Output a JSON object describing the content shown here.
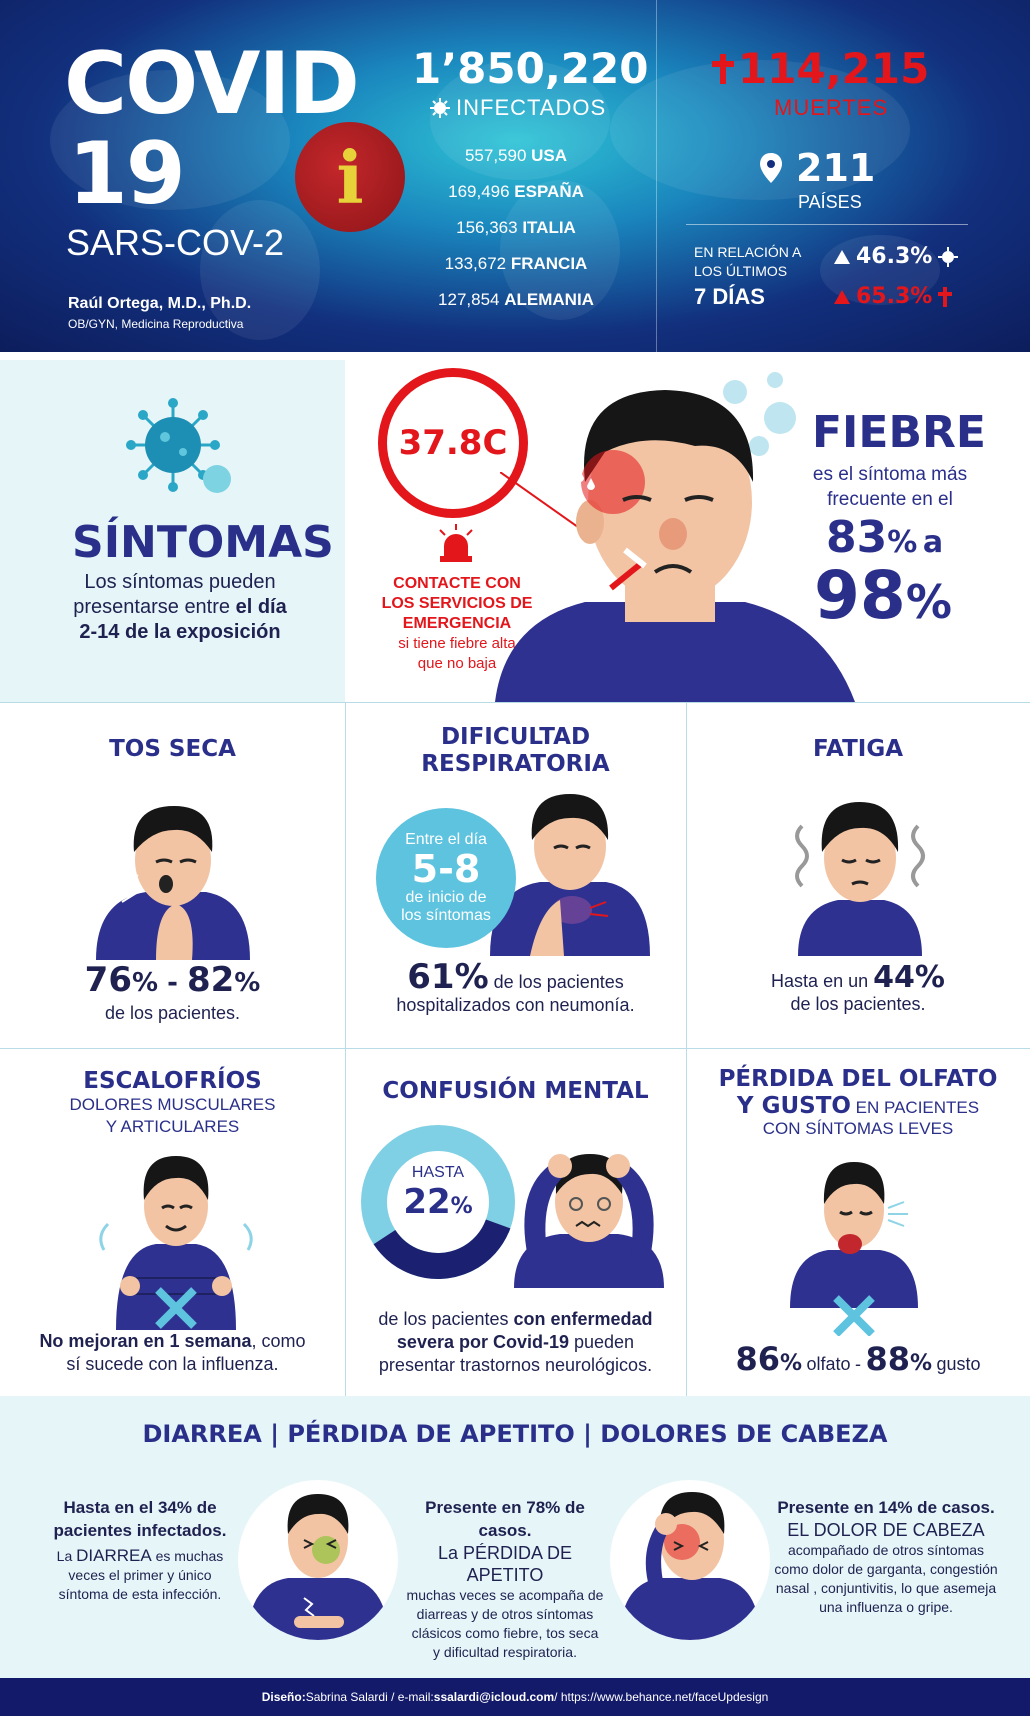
{
  "header": {
    "title_line1": "COVID",
    "title_line2": "19",
    "subtitle": "SARS-COV-2",
    "author_name": "Raúl Ortega, M.D., Ph.D.",
    "author_role": "OB/GYN, Medicina Reproductiva",
    "info_glyph": "i",
    "infected_count": "1’850,220",
    "infected_label": "INFECTADOS",
    "countries": [
      {
        "count": "557,590",
        "name": "USA"
      },
      {
        "count": "169,496",
        "name": "ESPAÑA"
      },
      {
        "count": "156,363",
        "name": "ITALIA"
      },
      {
        "count": "133,672",
        "name": "FRANCIA"
      },
      {
        "count": "127,854",
        "name": "ALEMANIA"
      }
    ],
    "deaths_count": "114,215",
    "deaths_label": "MUERTES",
    "countries_count": "211",
    "countries_label": "PAÍSES",
    "relation_line1": "EN RELACIÓN A",
    "relation_line2": "LOS ÚLTIMOS",
    "relation_line3": "7 DÍAS",
    "relation_infected_pct": "46.3%",
    "relation_deaths_pct": "65.3%",
    "colors": {
      "deaths": "#e3161b",
      "navy": "#12307e",
      "info_yellow": "#e7d23a"
    }
  },
  "symptoms": {
    "title": "SÍNTOMAS",
    "text_line1": "Los síntomas pueden",
    "text_line2_pre": "presentarse entre ",
    "text_line2_bold": "el día",
    "text_line3_bold": "2-14 de la exposición",
    "temperature": "37.8C",
    "emergency_line1": "CONTACTE CON",
    "emergency_line2": "LOS SERVICIOS DE",
    "emergency_line3": "EMERGENCIA",
    "emergency_line4": "si tiene fiebre alta",
    "emergency_line5": "que no baja",
    "fever_title": "FIEBRE",
    "fever_line1": "es el síntoma más",
    "fever_line2": "frecuente en el",
    "fever_pct_low": "83",
    "fever_pct_sym": "%",
    "fever_connector": "a",
    "fever_pct_high": "98"
  },
  "grid": {
    "tos": {
      "title": "TOS SECA",
      "pct_low": "76",
      "pct_high": "82",
      "text": "de los pacientes."
    },
    "dificultad": {
      "title_line1": "DIFICULTAD",
      "title_line2": "RESPIRATORIA",
      "circle_line1": "Entre el día",
      "circle_big": "5-8",
      "circle_line2": "de inicio de",
      "circle_line3": "los síntomas",
      "pct": "61%",
      "text_line1": "de los pacientes",
      "text_line2": "hospitalizados con neumonía."
    },
    "fatiga": {
      "title": "FATIGA",
      "text_pre": "Hasta en un",
      "pct": "44%",
      "text_line2": "de los pacientes."
    },
    "escalofrios": {
      "title": "ESCALOFRÍOS",
      "sub_line1": "DOLORES MUSCULARES",
      "sub_line2": "Y ARTICULARES",
      "text_bold": "No mejoran en 1 semana",
      "text_rest": ", como",
      "text_line2": "sí sucede con la influenza."
    },
    "confusion": {
      "title": "CONFUSIÓN MENTAL",
      "ring_label": "HASTA",
      "ring_pct": "22",
      "ring_value": 22,
      "text_pre": "de  los pacientes ",
      "text_bold1": "con enfermedad",
      "text_bold2": "severa por Covid-19",
      "text_rest": " pueden",
      "text_line3": "presentar trastornos neurológicos."
    },
    "olfato": {
      "title_line1": "PÉRDIDA DEL OLFATO",
      "title_line2_bold": "Y GUSTO",
      "title_line2_rest": " EN PACIENTES",
      "title_line3": "CON SÍNTOMAS LEVES",
      "olfato_pct": "86",
      "olfato_label": "olfato",
      "separator": "-",
      "gusto_pct": "88",
      "gusto_label": "gusto"
    }
  },
  "bottom": {
    "title": "DIARREA | PÉRDIDA DE APETITO | DOLORES DE CABEZA",
    "col1": {
      "head1": "Hasta en el 34% de",
      "head2": "pacientes infectados.",
      "caps_pre": "La ",
      "caps": "DIARREA",
      "caps_post": " es muchas",
      "line2": "veces el primer y único",
      "line3": "síntoma de esta infección."
    },
    "col2": {
      "head": "Presente en 78% de casos.",
      "caps": "La PÉRDIDA DE APETITO",
      "line1": "muchas veces se acompaña de",
      "line2": "diarreas y de otros síntomas",
      "line3": "clásicos como fiebre, tos seca",
      "line4": "y dificultad respiratoria."
    },
    "col3": {
      "head": "Presente en 14% de casos.",
      "caps": "EL DOLOR DE CABEZA",
      "line1": "acompañado de otros síntomas",
      "line2": "como dolor de garganta, congestión",
      "line3": "nasal , conjuntivitis, lo que asemeja",
      "line4": "una influenza o gripe."
    }
  },
  "footer": {
    "design_label": "Diseño:",
    "design_name": " Sabrina Salardi / e-mail: ",
    "email": "ssalardi@icloud.com",
    "site": " / https://www.behance.net/faceUpdesign"
  }
}
